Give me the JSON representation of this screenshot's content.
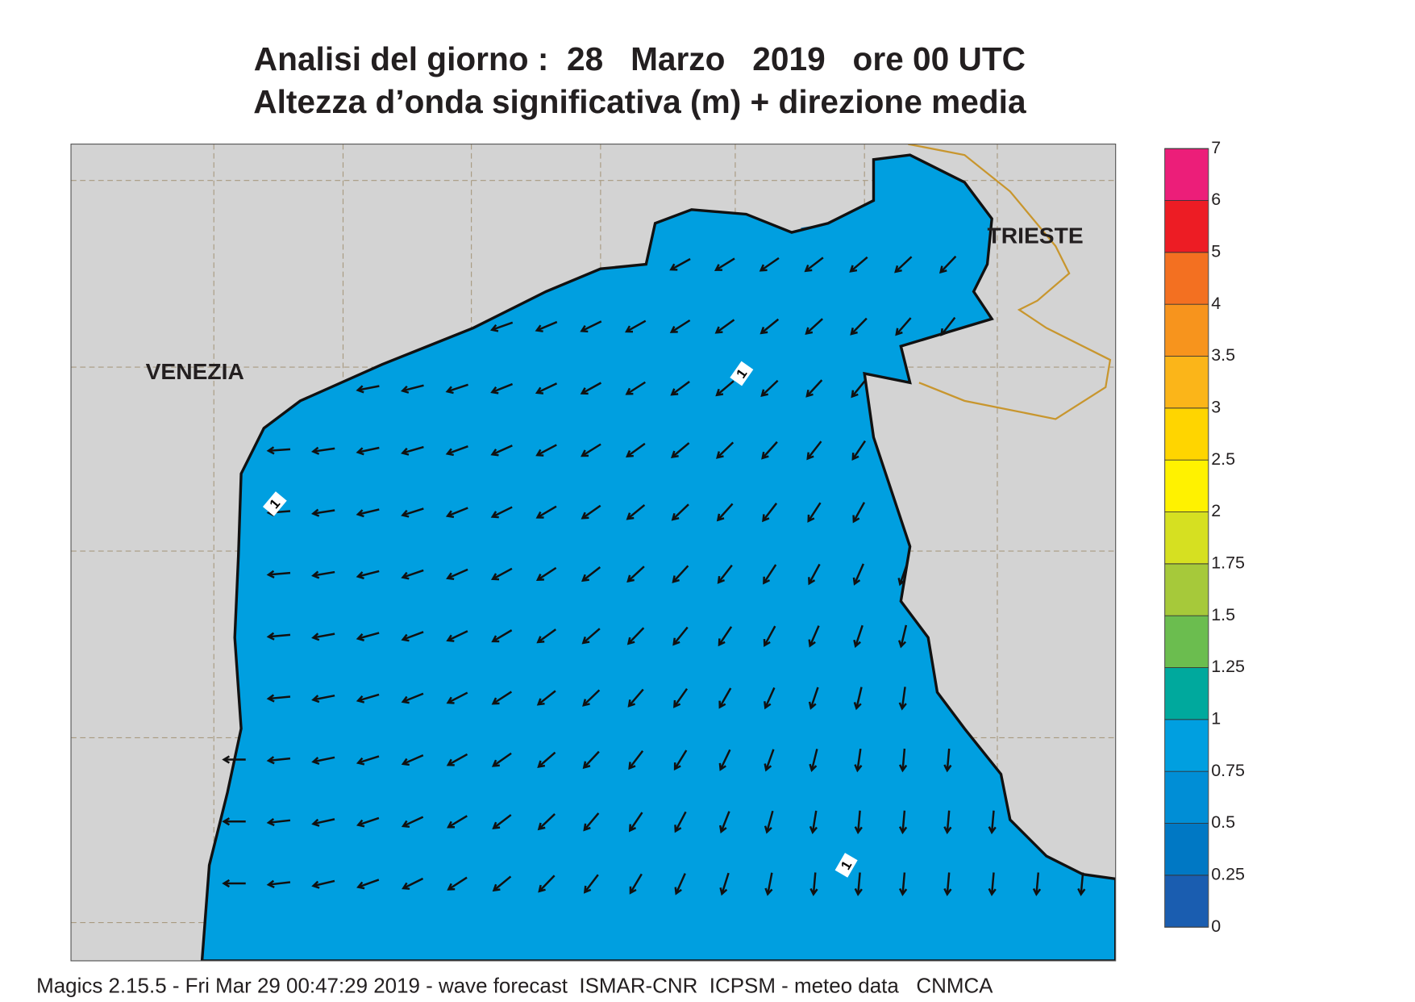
{
  "title": [
    "Analisi del giorno :  28   Marzo   2019   ore 00 UTC",
    "Altezza d’onda significativa (m) + direzione media"
  ],
  "places": [
    "VENEZIA",
    "TRIESTE"
  ],
  "contour_labels": [
    "1",
    "1",
    "1"
  ],
  "colorbar": {
    "ticks": [
      0,
      0.25,
      0.5,
      0.75,
      1,
      1.25,
      1.5,
      1.75,
      2,
      2.5,
      3,
      3.5,
      4,
      5,
      6,
      7
    ],
    "colors": [
      "#1a5db0",
      "#0078c4",
      "#008ed6",
      "#009fe0",
      "#00a99d",
      "#6bbd4f",
      "#a6c93a",
      "#d6e021",
      "#fff200",
      "#ffd500",
      "#fbb519",
      "#f7941d",
      "#f37021",
      "#ed1c24",
      "#ec1e79"
    ]
  },
  "footer": "Magics 2.15.5 - Fri Mar 29 00:47:29 2019 - wave forecast  ISMAR-CNR  ICPSM - meteo data   CNMCA"
}
